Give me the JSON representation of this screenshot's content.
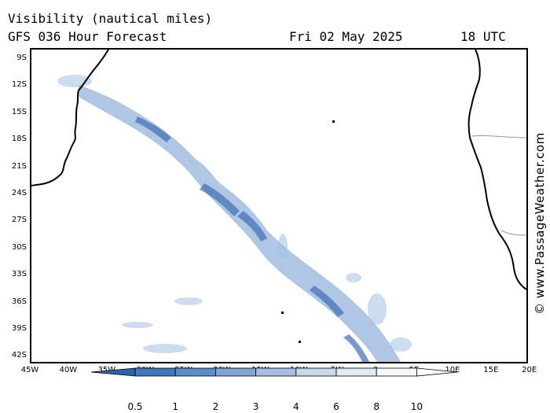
{
  "header": {
    "title": "Visibility (nautical miles)",
    "model": "GFS 036 Hour Forecast",
    "date": "Fri 02 May 2025",
    "time": "18 UTC"
  },
  "credit": "© www.PassageWeather.com",
  "axes": {
    "lat_labels": [
      "9S",
      "12S",
      "15S",
      "18S",
      "21S",
      "24S",
      "27S",
      "30S",
      "33S",
      "36S",
      "39S",
      "42S"
    ],
    "lon_labels": [
      "45W",
      "40W",
      "35W",
      "30W",
      "25W",
      "20W",
      "15W",
      "10W",
      "5W",
      "0",
      "5E",
      "10E",
      "15E",
      "20E"
    ]
  },
  "legend": {
    "labels": [
      "0.5",
      "1",
      "2",
      "3",
      "4",
      "6",
      "8",
      "10"
    ],
    "colors": [
      "#2f62a8",
      "#3e78bf",
      "#5b8ccc",
      "#7ea6d6",
      "#a5c0e2",
      "#c6d7ee",
      "#e2ebf7",
      "#f6f9fd",
      "#ffffff"
    ]
  },
  "colors": {
    "land_outline": "#000000",
    "border": "#999999",
    "low_visibility": "#5b8ccc"
  }
}
